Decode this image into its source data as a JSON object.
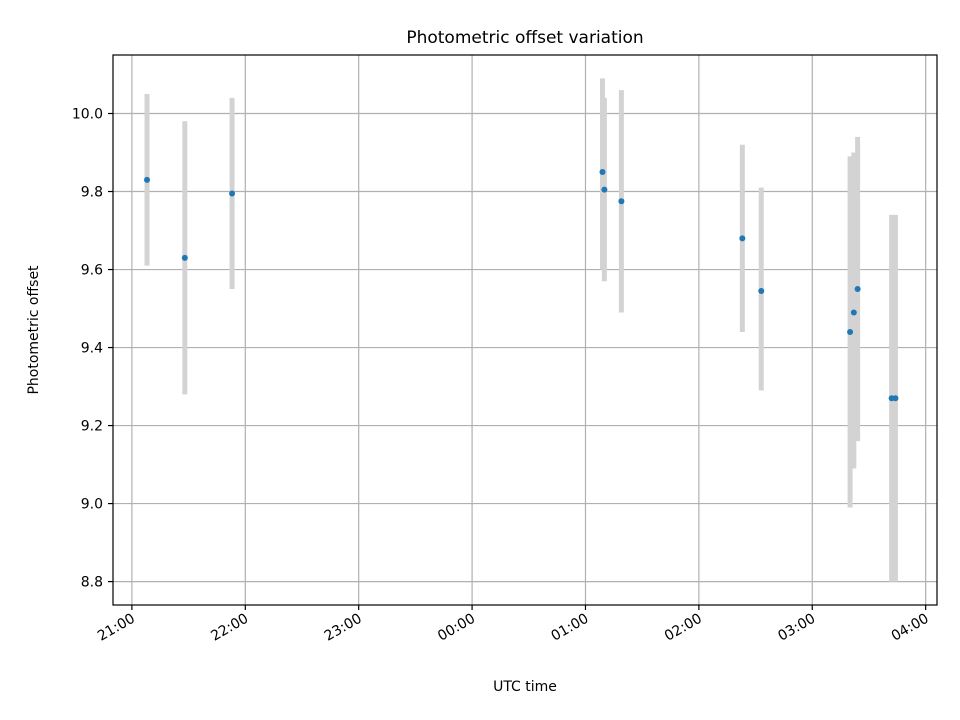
{
  "chart_data": {
    "type": "scatter",
    "title": "Photometric offset variation",
    "xlabel": "UTC time",
    "ylabel": "Photometric offset",
    "xlim": [
      "20:50",
      "04:06"
    ],
    "ylim": [
      8.74,
      10.15
    ],
    "x_ticks": [
      "21:00",
      "22:00",
      "23:00",
      "00:00",
      "01:00",
      "02:00",
      "03:00",
      "04:00"
    ],
    "y_ticks": [
      8.8,
      9.0,
      9.2,
      9.4,
      9.6,
      9.8,
      10.0
    ],
    "grid": true,
    "colors": {
      "points": "#1f77b4",
      "errorbars": "#d3d3d3",
      "grid": "#b0b0b0"
    },
    "points": [
      {
        "x": "21:08",
        "y": 9.83,
        "yerr_low": 9.61,
        "yerr_high": 10.05
      },
      {
        "x": "21:28",
        "y": 9.63,
        "yerr_low": 9.28,
        "yerr_high": 9.98
      },
      {
        "x": "21:53",
        "y": 9.795,
        "yerr_low": 9.55,
        "yerr_high": 10.04
      },
      {
        "x": "01:09",
        "y": 9.85,
        "yerr_low": 9.6,
        "yerr_high": 10.09
      },
      {
        "x": "01:10",
        "y": 9.805,
        "yerr_low": 9.57,
        "yerr_high": 10.04
      },
      {
        "x": "01:19",
        "y": 9.775,
        "yerr_low": 9.49,
        "yerr_high": 10.06
      },
      {
        "x": "02:23",
        "y": 9.68,
        "yerr_low": 9.44,
        "yerr_high": 9.92
      },
      {
        "x": "02:33",
        "y": 9.545,
        "yerr_low": 9.29,
        "yerr_high": 9.81
      },
      {
        "x": "03:20",
        "y": 9.44,
        "yerr_low": 8.99,
        "yerr_high": 9.89
      },
      {
        "x": "03:22",
        "y": 9.49,
        "yerr_low": 9.09,
        "yerr_high": 9.9
      },
      {
        "x": "03:24",
        "y": 9.55,
        "yerr_low": 9.16,
        "yerr_high": 9.94
      },
      {
        "x": "03:42",
        "y": 9.27,
        "yerr_low": 8.8,
        "yerr_high": 9.74
      },
      {
        "x": "03:44",
        "y": 9.27,
        "yerr_low": 8.8,
        "yerr_high": 9.74
      }
    ]
  }
}
